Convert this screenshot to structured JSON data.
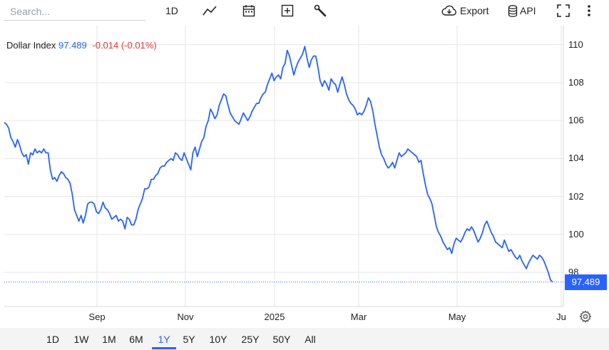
{
  "toolbar": {
    "search_placeholder": "Search...",
    "interval_label": "1D",
    "export_label": "Export",
    "api_label": "API"
  },
  "legend": {
    "name": "Dollar Index",
    "value": "97.489",
    "change": "-0.014 (-0.01%)"
  },
  "last_price_label": "97.489",
  "ranges": [
    "1D",
    "1W",
    "1M",
    "6M",
    "1Y",
    "5Y",
    "10Y",
    "25Y",
    "50Y",
    "All"
  ],
  "active_range": "1Y",
  "colors": {
    "line": "#2962ff",
    "negative": "#e53935",
    "grid": "#e6e6e6"
  },
  "icons": [
    "line-chart-icon",
    "calendar-icon",
    "add-box-icon",
    "wrench-icon",
    "cloud-download-icon",
    "database-icon",
    "fullscreen-icon",
    "more-vertical-icon",
    "gear-icon"
  ],
  "chart_data": {
    "type": "line",
    "series": [
      {
        "name": "Dollar Index",
        "values": [
          105.9,
          105.8,
          105.6,
          105.1,
          104.9,
          104.6,
          105.0,
          104.7,
          104.3,
          104.1,
          104.2,
          103.7,
          104.3,
          104.2,
          104.5,
          104.3,
          104.4,
          104.3,
          104.5,
          104.3,
          104.3,
          103.4,
          102.9,
          103.0,
          102.8,
          103.1,
          103.3,
          103.2,
          103.0,
          102.9,
          102.7,
          102.1,
          101.3,
          101.0,
          100.7,
          101.0,
          100.6,
          101.0,
          101.6,
          101.7,
          101.7,
          101.6,
          101.2,
          101.1,
          101.3,
          101.7,
          101.4,
          101.3,
          101.1,
          100.8,
          100.9,
          101.0,
          100.7,
          100.8,
          100.7,
          100.3,
          100.9,
          100.8,
          100.5,
          100.5,
          100.8,
          101.3,
          101.6,
          101.9,
          102.4,
          102.4,
          102.5,
          102.9,
          102.9,
          103.1,
          103.2,
          103.5,
          103.6,
          103.6,
          103.8,
          103.9,
          104.0,
          103.9,
          104.3,
          104.2,
          104.0,
          103.9,
          104.3,
          104.0,
          103.7,
          103.4,
          104.3,
          104.6,
          104.1,
          104.5,
          104.9,
          105.1,
          105.7,
          106.0,
          106.6,
          106.4,
          106.1,
          106.3,
          106.8,
          107.1,
          107.4,
          107.3,
          106.8,
          106.4,
          106.2,
          106.0,
          105.9,
          105.8,
          106.1,
          106.4,
          106.2,
          106.0,
          106.2,
          106.5,
          106.7,
          106.9,
          106.9,
          107.2,
          107.4,
          107.5,
          107.9,
          108.2,
          108.5,
          108.1,
          108.3,
          108.4,
          108.2,
          108.8,
          109.0,
          109.7,
          109.4,
          108.9,
          108.4,
          108.8,
          109.1,
          109.3,
          109.5,
          109.9,
          109.3,
          108.8,
          109.2,
          109.4,
          109.4,
          108.8,
          108.1,
          107.8,
          108.1,
          107.9,
          107.6,
          108.2,
          108.0,
          107.9,
          107.5,
          107.9,
          108.3,
          107.9,
          107.4,
          107.1,
          106.9,
          106.8,
          106.6,
          106.3,
          106.4,
          106.3,
          106.5,
          106.8,
          107.2,
          107.0,
          106.5,
          105.8,
          105.2,
          104.6,
          104.2,
          104.0,
          103.7,
          103.5,
          103.6,
          103.8,
          103.5,
          103.9,
          104.3,
          104.1,
          104.2,
          104.3,
          104.5,
          104.4,
          104.3,
          104.2,
          104.1,
          103.8,
          103.9,
          103.2,
          102.6,
          102.1,
          101.9,
          101.6,
          101.0,
          100.4,
          100.1,
          99.9,
          99.6,
          99.4,
          99.2,
          99.3,
          99.0,
          99.5,
          99.8,
          99.7,
          99.6,
          99.8,
          100.1,
          100.3,
          100.2,
          100.4,
          100.2,
          99.9,
          99.6,
          99.8,
          100.1,
          100.5,
          100.7,
          100.4,
          100.1,
          99.9,
          99.6,
          99.5,
          99.4,
          99.3,
          99.7,
          99.4,
          99.1,
          99.2,
          99.0,
          98.8,
          98.7,
          98.9,
          98.6,
          98.4,
          98.2,
          98.5,
          98.7,
          98.9,
          98.8,
          98.7,
          98.9,
          98.8,
          98.6,
          98.3,
          98.0,
          97.6,
          97.49
        ]
      }
    ],
    "x_labels": [
      "Sep",
      "Nov",
      "2025",
      "Mar",
      "May",
      "Ju"
    ],
    "ylim": [
      96.2,
      111.0
    ],
    "yticks": [
      98,
      100,
      102,
      104,
      106,
      108,
      110
    ],
    "last_value": 97.489,
    "grid": true
  }
}
